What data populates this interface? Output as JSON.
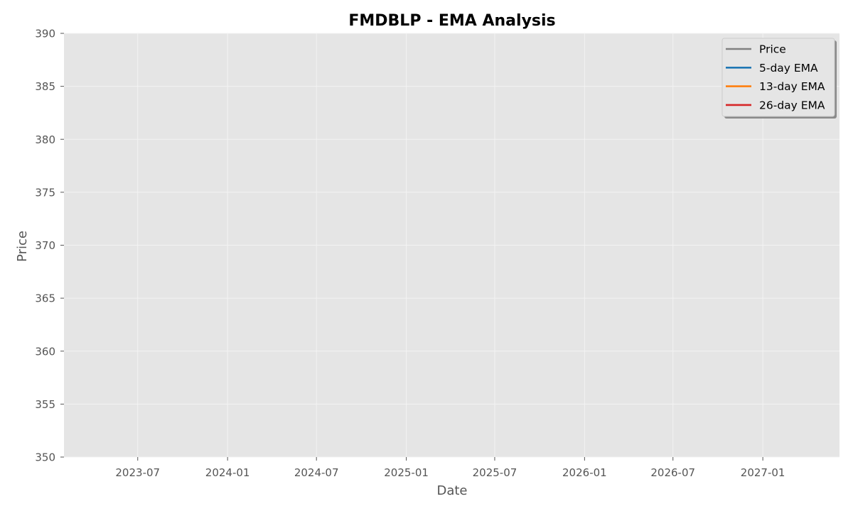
{
  "chart_data": {
    "type": "line",
    "title": "FMDBLP - EMA Analysis",
    "xlabel": "Date",
    "ylabel": "Price",
    "ylim": [
      350,
      390
    ],
    "y_ticks": [
      350,
      355,
      360,
      365,
      370,
      375,
      380,
      385,
      390
    ],
    "xlim": [
      "2023-01-31",
      "2027-06-07"
    ],
    "x_ticks": [
      "2023-07",
      "2024-01",
      "2024-07",
      "2025-01",
      "2025-07",
      "2026-01",
      "2026-07",
      "2027-01"
    ],
    "grid": true,
    "legend_position": "top-right",
    "series": [
      {
        "name": "Price",
        "color": "#808080",
        "x": [],
        "values": []
      },
      {
        "name": "5-day EMA",
        "color": "#1f77b4",
        "x": [],
        "values": []
      },
      {
        "name": "13-day EMA",
        "color": "#ff7f0e",
        "x": [],
        "values": []
      },
      {
        "name": "26-day EMA",
        "color": "#d62728",
        "x": [],
        "values": []
      }
    ],
    "colors": {
      "plot_background": "#e5e5e5",
      "grid": "#f3f3f3"
    }
  }
}
